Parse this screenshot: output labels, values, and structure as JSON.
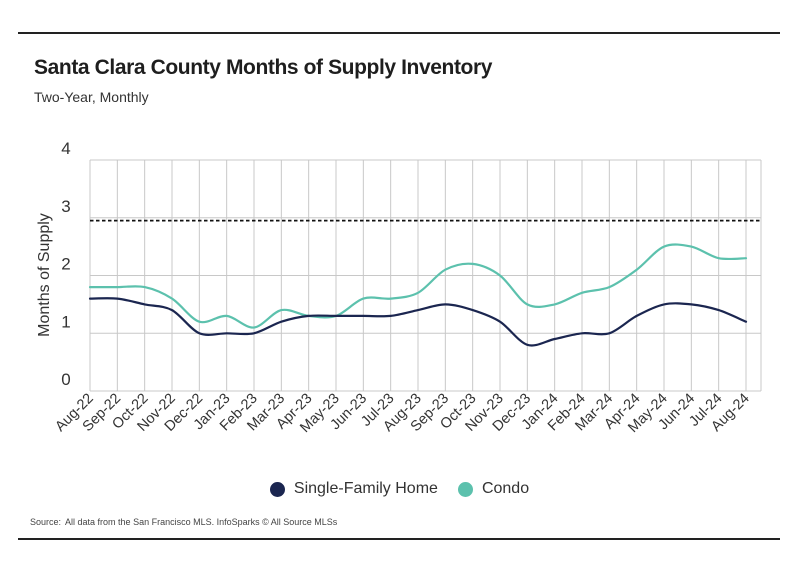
{
  "title": "Santa Clara County Months of Supply Inventory",
  "subtitle": "Two-Year, Monthly",
  "source_label": "Source:",
  "source_text": "All data from the San Francisco MLS. InfoSparks © All Source MLSs",
  "colors": {
    "single_family": "#1b2650",
    "condo": "#5cc1ad",
    "grid": "#c8c8c8",
    "reference": "#111111"
  },
  "chart_data": {
    "type": "line",
    "title": "Santa Clara County Months of Supply Inventory",
    "subtitle": "Two-Year, Monthly",
    "xlabel": "",
    "ylabel": "Months of Supply",
    "ylim": [
      0,
      4
    ],
    "yticks": [
      0,
      1,
      2,
      3,
      4
    ],
    "grid": true,
    "reference_line": {
      "y": 2.95,
      "style": "dashed"
    },
    "legend_position": "bottom",
    "categories": [
      "Aug-22",
      "Sep-22",
      "Oct-22",
      "Nov-22",
      "Dec-22",
      "Jan-23",
      "Feb-23",
      "Mar-23",
      "Apr-23",
      "May-23",
      "Jun-23",
      "Jul-23",
      "Aug-23",
      "Sep-23",
      "Oct-23",
      "Nov-23",
      "Dec-23",
      "Jan-24",
      "Feb-24",
      "Mar-24",
      "Apr-24",
      "May-24",
      "Jun-24",
      "Jul-24",
      "Aug-24"
    ],
    "series": [
      {
        "name": "Single-Family Home",
        "color": "#1b2650",
        "values": [
          1.6,
          1.6,
          1.5,
          1.4,
          1.0,
          1.0,
          1.0,
          1.2,
          1.3,
          1.3,
          1.3,
          1.3,
          1.4,
          1.5,
          1.4,
          1.2,
          0.8,
          0.9,
          1.0,
          1.0,
          1.3,
          1.5,
          1.5,
          1.4,
          1.2
        ]
      },
      {
        "name": "Condo",
        "color": "#5cc1ad",
        "values": [
          1.8,
          1.8,
          1.8,
          1.6,
          1.2,
          1.3,
          1.1,
          1.4,
          1.3,
          1.3,
          1.6,
          1.6,
          1.7,
          2.1,
          2.2,
          2.0,
          1.5,
          1.5,
          1.7,
          1.8,
          2.1,
          2.5,
          2.5,
          2.3,
          2.3
        ]
      }
    ]
  }
}
